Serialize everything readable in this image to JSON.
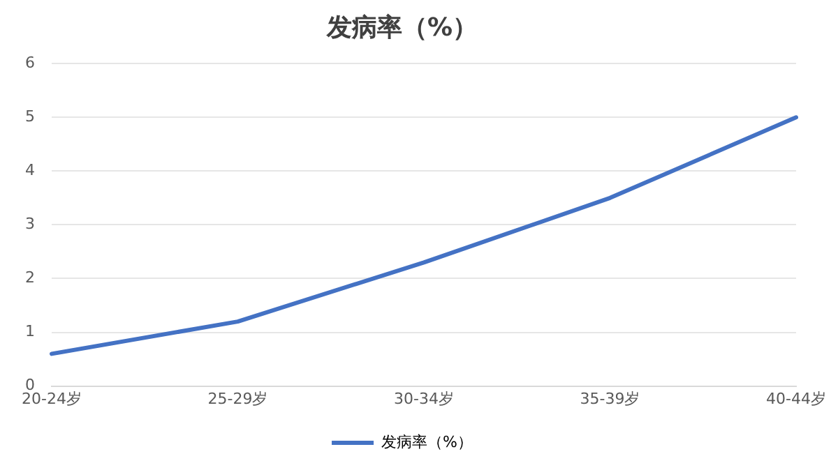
{
  "chart_data": {
    "type": "line",
    "title": "发病率（%）",
    "categories": [
      "20-24岁",
      "25-29岁",
      "30-34岁",
      "35-39岁",
      "40-44岁"
    ],
    "series": [
      {
        "name": "发病率（%）",
        "color": "#4472c4",
        "values": [
          0.6,
          1.2,
          2.3,
          3.5,
          5.0
        ]
      }
    ],
    "ylim": [
      0,
      6
    ],
    "yticks": [
      0,
      1,
      2,
      3,
      4,
      5,
      6
    ],
    "grid": "y",
    "legend": "bottom",
    "marker": "none"
  }
}
